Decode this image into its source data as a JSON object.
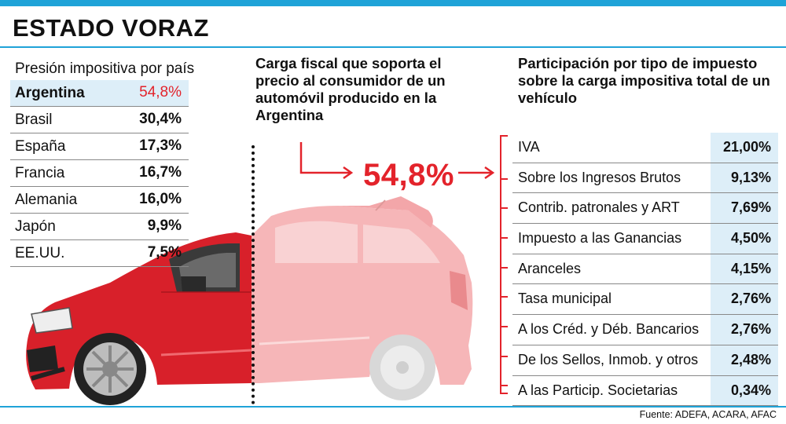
{
  "header": {
    "title": "ESTADO VORAZ"
  },
  "left_panel": {
    "subtitle": "Presión impositiva por país"
  },
  "center_panel": {
    "heading": "Carga fiscal que soporta el precio al consumidor de un automóvil producido en la Argentina",
    "big_value": "54,8%"
  },
  "right_panel": {
    "heading": "Participación por tipo de impuesto sobre la carga impositiva total de un vehículo"
  },
  "source": "Fuente: ADEFA, ACARA, AFAC",
  "colors": {
    "accent_red": "#e3232b",
    "accent_blue": "#1fa3d8",
    "highlight_bg": "#ddeef8"
  },
  "icons": [
    "car-illustration",
    "arrow-right-icon"
  ],
  "chart_data": [
    {
      "type": "table",
      "title": "Presión impositiva por país",
      "categories": [
        "Argentina",
        "Brasil",
        "España",
        "Francia",
        "Alemania",
        "Japón",
        "EE.UU."
      ],
      "values": [
        54.8,
        30.4,
        17.3,
        16.7,
        16.0,
        9.9,
        7.5
      ],
      "labels": [
        "54,8%",
        "30,4%",
        "17,3%",
        "16,7%",
        "16,0%",
        "9,9%",
        "7,5%"
      ],
      "highlighted": "Argentina"
    },
    {
      "type": "table",
      "title": "Participación por tipo de impuesto sobre la carga impositiva total de un vehículo",
      "categories": [
        "IVA",
        "Sobre los Ingresos Brutos",
        "Contrib. patronales y ART",
        "Impuesto a las Ganancias",
        "Aranceles",
        "Tasa municipal",
        "A los Créd. y Déb. Bancarios",
        "De los Sellos, Inmob. y otros",
        "A las Particip. Societarias"
      ],
      "values": [
        21.0,
        9.13,
        7.69,
        4.5,
        4.15,
        2.76,
        2.76,
        2.48,
        0.34
      ],
      "labels": [
        "21,00%",
        "9,13%",
        "7,69%",
        "4,50%",
        "4,15%",
        "2,76%",
        "2,76%",
        "2,48%",
        "0,34%"
      ]
    }
  ]
}
